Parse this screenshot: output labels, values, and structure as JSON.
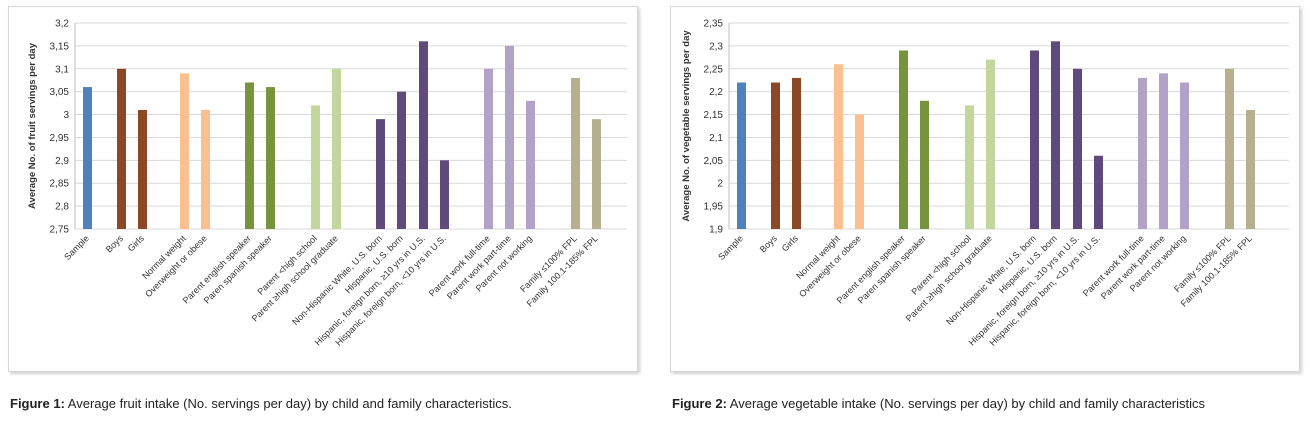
{
  "categories": [
    "Sample",
    "Boys",
    "Girls",
    "Normal weight",
    "Overweight or obese",
    "Parent english speaker",
    "Paren spanish speaker",
    "Parent <high school",
    "Parent ≥high school graduate",
    "Non-Hispanic White, U.S. born",
    "Hispanic, U.S. born",
    "Hispanic, foreign born, ≥10 yrs in U.S.",
    "Hispanic, foreign born, <10 yrs in U.S.",
    "Parent work full-time",
    "Parent work part-time",
    "Parent not working",
    "Family ≤100% FPL",
    "Family 100.1-185% FPL"
  ],
  "chart_data": [
    {
      "type": "bar",
      "title": "",
      "xlabel": "",
      "ylabel": "Average No. of fruit servings per day",
      "ylim": [
        2.75,
        3.2
      ],
      "ticks": [
        "2,75",
        "2,8",
        "2,85",
        "2,9",
        "2,95",
        "3",
        "3,05",
        "3,1",
        "3,15",
        "3,2"
      ],
      "tick_values": [
        2.75,
        2.8,
        2.85,
        2.9,
        2.95,
        3.0,
        3.05,
        3.1,
        3.15,
        3.2
      ],
      "values": [
        3.06,
        3.1,
        3.01,
        3.09,
        3.01,
        3.07,
        3.06,
        3.02,
        3.1,
        2.99,
        3.05,
        3.16,
        2.9,
        3.1,
        3.15,
        3.03,
        3.08,
        2.99
      ],
      "grid": true
    },
    {
      "type": "bar",
      "title": "",
      "xlabel": "",
      "ylabel": "Average No. of vegetable servings per day",
      "ylim": [
        1.9,
        2.35
      ],
      "ticks": [
        "1,9",
        "1,95",
        "2",
        "2,05",
        "2,1",
        "2,15",
        "2,2",
        "2,25",
        "2,3",
        "2,35"
      ],
      "tick_values": [
        1.9,
        1.95,
        2.0,
        2.05,
        2.1,
        2.15,
        2.2,
        2.25,
        2.3,
        2.35
      ],
      "values": [
        2.22,
        2.22,
        2.23,
        2.26,
        2.15,
        2.29,
        2.18,
        2.17,
        2.27,
        2.29,
        2.31,
        2.25,
        2.06,
        2.23,
        2.24,
        2.22,
        2.25,
        2.16
      ],
      "grid": true
    }
  ],
  "colors": [
    "#4f81bd",
    "#8b4726",
    "#8b4726",
    "#fac090",
    "#fac090",
    "#77933c",
    "#77933c",
    "#c3d69b",
    "#c3d69b",
    "#604a7b",
    "#604a7b",
    "#604a7b",
    "#604a7b",
    "#b3a2c7",
    "#b3a2c7",
    "#b3a2c7",
    "#b7b08e",
    "#b7b08e"
  ],
  "captions": [
    {
      "label": "Figure 1:",
      "text": " Average fruit intake (No. servings per day) by child and family characteristics."
    },
    {
      "label": "Figure 2:",
      "text": " Average vegetable intake (No. servings per day) by child and family characteristics"
    }
  ]
}
